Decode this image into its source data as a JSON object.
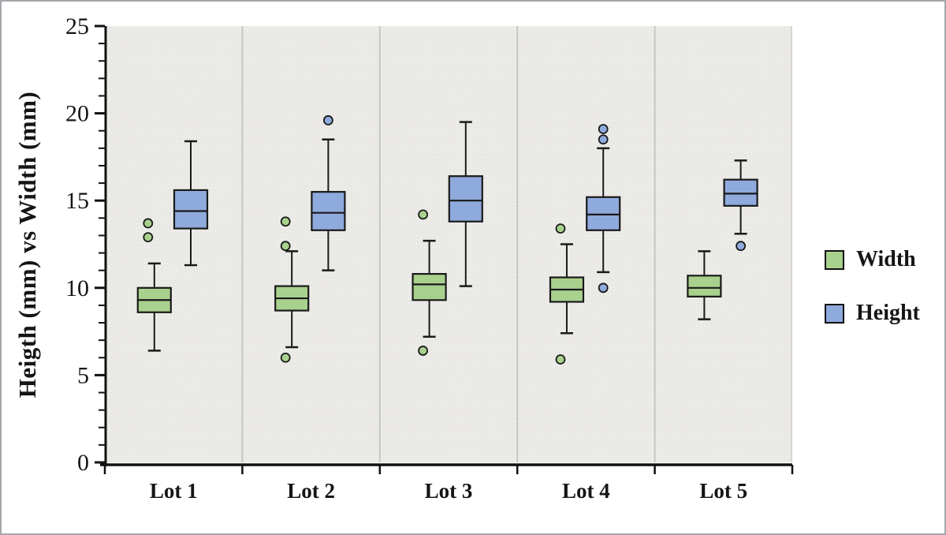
{
  "figure": {
    "ylabel": "Heigth (mm) vs Width (mm)",
    "legend": [
      {
        "label": "Width",
        "color": "#a9d18e"
      },
      {
        "label": "Height",
        "color": "#8faadc"
      }
    ]
  },
  "chart_data": {
    "type": "boxplot",
    "title": "",
    "xlabel": "",
    "ylabel": "Heigth (mm) vs Width (mm)",
    "categories": [
      "Lot 1",
      "Lot 2",
      "Lot 3",
      "Lot 4",
      "Lot 5"
    ],
    "ylim": [
      0,
      25
    ],
    "y_major_ticks": [
      0,
      5,
      10,
      15,
      20,
      25
    ],
    "y_minor_tick_step": 1,
    "grid": false,
    "legend_position": "right",
    "plot_background_color": "#e9e8e5",
    "panel_separator_color": "#c6c6c6",
    "box_stroke_color": "#1a1a1a",
    "axis_color": "#111111",
    "series": [
      {
        "name": "Width",
        "color": "#a9d18e",
        "boxes": [
          {
            "category": "Lot 1",
            "whisker_low": 6.4,
            "q1": 8.6,
            "median": 9.3,
            "q3": 10.0,
            "whisker_high": 11.4,
            "outliers": [
              12.9,
              13.7
            ]
          },
          {
            "category": "Lot 2",
            "whisker_low": 6.6,
            "q1": 8.7,
            "median": 9.4,
            "q3": 10.1,
            "whisker_high": 12.1,
            "outliers": [
              6.0,
              12.4,
              13.8
            ]
          },
          {
            "category": "Lot 3",
            "whisker_low": 7.2,
            "q1": 9.3,
            "median": 10.2,
            "q3": 10.8,
            "whisker_high": 12.7,
            "outliers": [
              6.4,
              14.2
            ]
          },
          {
            "category": "Lot 4",
            "whisker_low": 7.4,
            "q1": 9.2,
            "median": 9.9,
            "q3": 10.6,
            "whisker_high": 12.5,
            "outliers": [
              5.9,
              13.4
            ]
          },
          {
            "category": "Lot 5",
            "whisker_low": 8.2,
            "q1": 9.5,
            "median": 10.0,
            "q3": 10.7,
            "whisker_high": 12.1,
            "outliers": []
          }
        ]
      },
      {
        "name": "Height",
        "color": "#8faadc",
        "boxes": [
          {
            "category": "Lot 1",
            "whisker_low": 11.3,
            "q1": 13.4,
            "median": 14.4,
            "q3": 15.6,
            "whisker_high": 18.4,
            "outliers": []
          },
          {
            "category": "Lot 2",
            "whisker_low": 11.0,
            "q1": 13.3,
            "median": 14.3,
            "q3": 15.5,
            "whisker_high": 18.5,
            "outliers": [
              19.6
            ]
          },
          {
            "category": "Lot 3",
            "whisker_low": 10.1,
            "q1": 13.8,
            "median": 15.0,
            "q3": 16.4,
            "whisker_high": 19.5,
            "outliers": []
          },
          {
            "category": "Lot 4",
            "whisker_low": 10.9,
            "q1": 13.3,
            "median": 14.2,
            "q3": 15.2,
            "whisker_high": 18.0,
            "outliers": [
              10.0,
              18.5,
              19.1
            ]
          },
          {
            "category": "Lot 5",
            "whisker_low": 13.1,
            "q1": 14.7,
            "median": 15.4,
            "q3": 16.2,
            "whisker_high": 17.3,
            "outliers": [
              12.4
            ]
          }
        ]
      }
    ]
  }
}
